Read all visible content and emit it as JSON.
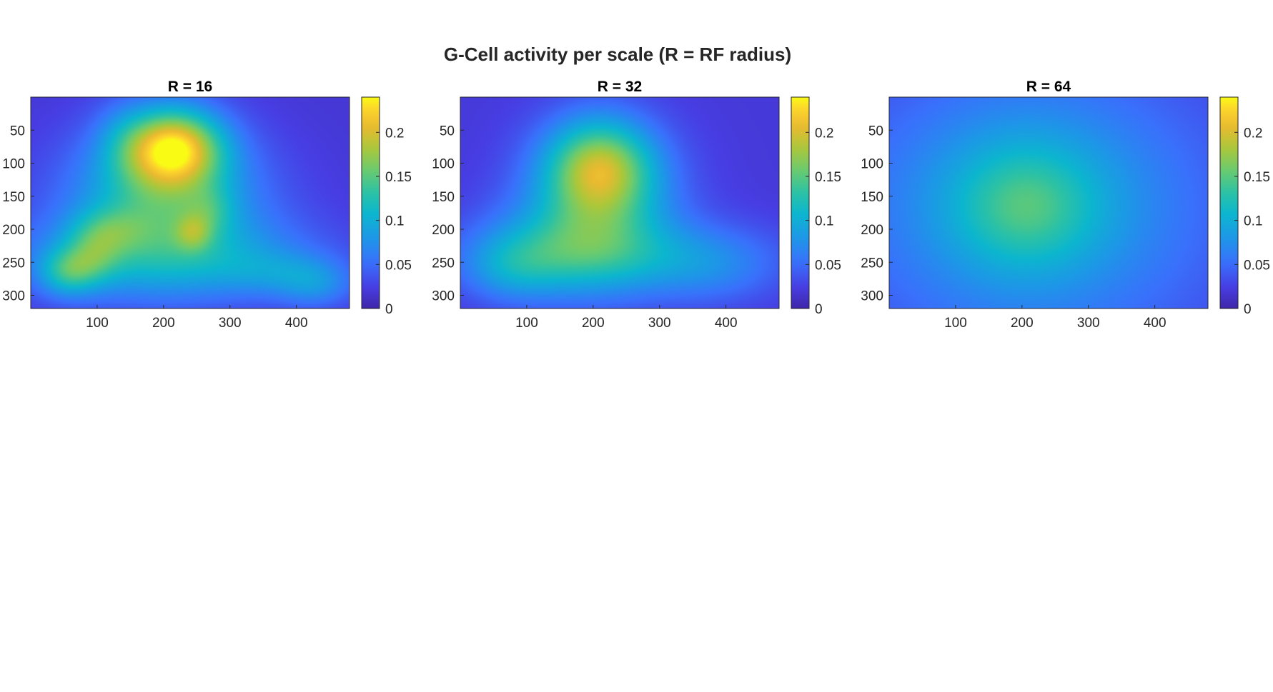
{
  "figure_title": "G-Cell activity per scale (R = RF radius)",
  "chart_data": [
    {
      "type": "heatmap",
      "title": "R = 16",
      "xlabel": "",
      "ylabel": "",
      "xlim": [
        0,
        480
      ],
      "ylim": [
        320,
        0
      ],
      "xticks": [
        "100",
        "200",
        "300",
        "400"
      ],
      "yticks": [
        "50",
        "100",
        "150",
        "200",
        "250",
        "300"
      ],
      "colorbar": {
        "ticks": [
          "0",
          "0.05",
          "0.1",
          "0.15",
          "0.2"
        ],
        "range": [
          0,
          0.24
        ]
      },
      "colormap": "parula",
      "blobs": [
        {
          "x": 215,
          "y": 75,
          "sx": 50,
          "sy": 40,
          "v": 0.16
        },
        {
          "x": 200,
          "y": 130,
          "sx": 80,
          "sy": 70,
          "v": 0.07
        },
        {
          "x": 200,
          "y": 170,
          "sx": 120,
          "sy": 80,
          "v": 0.05
        },
        {
          "x": 245,
          "y": 205,
          "sx": 20,
          "sy": 20,
          "v": 0.05
        },
        {
          "x": 270,
          "y": 170,
          "sx": 25,
          "sy": 25,
          "v": 0.03
        },
        {
          "x": 120,
          "y": 200,
          "sx": 40,
          "sy": 25,
          "v": 0.04
        },
        {
          "x": 55,
          "y": 265,
          "sx": 30,
          "sy": 25,
          "v": 0.07
        },
        {
          "x": 95,
          "y": 240,
          "sx": 30,
          "sy": 30,
          "v": 0.05
        },
        {
          "x": 200,
          "y": 245,
          "sx": 160,
          "sy": 45,
          "v": 0.06
        },
        {
          "x": 430,
          "y": 285,
          "sx": 40,
          "sy": 25,
          "v": 0.04
        },
        {
          "x": 370,
          "y": 265,
          "sx": 60,
          "sy": 25,
          "v": 0.03
        },
        {
          "x": 140,
          "y": 60,
          "sx": 30,
          "sy": 40,
          "v": 0.02
        }
      ],
      "base_level": 0.018
    },
    {
      "type": "heatmap",
      "title": "R = 32",
      "xlabel": "",
      "ylabel": "",
      "xlim": [
        0,
        480
      ],
      "ylim": [
        320,
        0
      ],
      "xticks": [
        "100",
        "200",
        "300",
        "400"
      ],
      "yticks": [
        "50",
        "100",
        "150",
        "200",
        "250",
        "300"
      ],
      "colorbar": {
        "ticks": [
          "0",
          "0.05",
          "0.1",
          "0.15",
          "0.2"
        ],
        "range": [
          0,
          0.24
        ]
      },
      "colormap": "parula",
      "blobs": [
        {
          "x": 210,
          "y": 105,
          "sx": 55,
          "sy": 50,
          "v": 0.12
        },
        {
          "x": 210,
          "y": 160,
          "sx": 80,
          "sy": 80,
          "v": 0.08
        },
        {
          "x": 150,
          "y": 230,
          "sx": 90,
          "sy": 50,
          "v": 0.05
        },
        {
          "x": 250,
          "y": 240,
          "sx": 150,
          "sy": 40,
          "v": 0.04
        },
        {
          "x": 75,
          "y": 260,
          "sx": 50,
          "sy": 35,
          "v": 0.04
        },
        {
          "x": 380,
          "y": 260,
          "sx": 70,
          "sy": 40,
          "v": 0.03
        }
      ],
      "base_level": 0.02
    },
    {
      "type": "heatmap",
      "title": "R = 64",
      "xlabel": "",
      "ylabel": "",
      "xlim": [
        0,
        480
      ],
      "ylim": [
        320,
        0
      ],
      "xticks": [
        "100",
        "200",
        "300",
        "400"
      ],
      "yticks": [
        "50",
        "100",
        "150",
        "200",
        "250",
        "300"
      ],
      "colorbar": {
        "ticks": [
          "0",
          "0.05",
          "0.1",
          "0.15",
          "0.2"
        ],
        "range": [
          0,
          0.24
        ]
      },
      "colormap": "parula",
      "blobs": [
        {
          "x": 205,
          "y": 165,
          "sx": 70,
          "sy": 60,
          "v": 0.05
        },
        {
          "x": 210,
          "y": 160,
          "sx": 150,
          "sy": 120,
          "v": 0.05
        },
        {
          "x": 220,
          "y": 180,
          "sx": 260,
          "sy": 200,
          "v": 0.03
        }
      ],
      "base_level": 0.02
    }
  ]
}
